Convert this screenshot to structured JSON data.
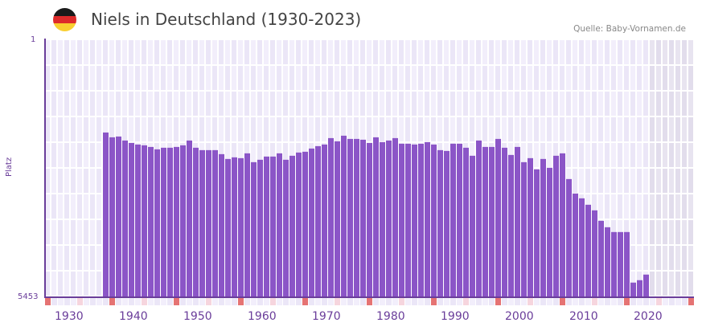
{
  "header": {
    "title": "Niels in Deutschland (1930-2023)",
    "source": "Quelle: Baby-Vornamen.de",
    "flag": [
      "#1a1a1a",
      "#dd2a2a",
      "#f9cf30"
    ]
  },
  "colors": {
    "bar": "#8b55c7",
    "axis": "#6a3d9a",
    "grid_a": "#f2eefb",
    "grid_b": "#ebe6f7",
    "future_a": "#e8e4f0",
    "future_b": "#e2ddec",
    "decade_marker": "#e57373",
    "mid_marker": "#f6d5de"
  },
  "chart_data": {
    "type": "bar",
    "title": "Niels in Deutschland (1930-2023)",
    "xlabel": "",
    "ylabel": "Platz",
    "y_inverted": true,
    "ylim": [
      1,
      5453
    ],
    "y_ticks": [
      "1",
      "5453"
    ],
    "x_ticks": [
      "1930",
      "1940",
      "1950",
      "1960",
      "1970",
      "1980",
      "1990",
      "2000",
      "2010",
      "2020"
    ],
    "x_range": [
      1928,
      2028
    ],
    "grid": true,
    "categories": [
      1937,
      1938,
      1939,
      1940,
      1941,
      1942,
      1943,
      1944,
      1945,
      1946,
      1947,
      1948,
      1949,
      1950,
      1951,
      1952,
      1953,
      1954,
      1955,
      1956,
      1957,
      1958,
      1959,
      1960,
      1961,
      1962,
      1963,
      1964,
      1965,
      1966,
      1967,
      1968,
      1969,
      1970,
      1971,
      1972,
      1973,
      1974,
      1975,
      1976,
      1977,
      1978,
      1979,
      1980,
      1981,
      1982,
      1983,
      1984,
      1985,
      1986,
      1987,
      1988,
      1989,
      1990,
      1991,
      1992,
      1993,
      1994,
      1995,
      1996,
      1997,
      1998,
      1999,
      2000,
      2001,
      2002,
      2003,
      2004,
      2005,
      2006,
      2007,
      2008,
      2009,
      2010,
      2011,
      2012,
      2013,
      2014,
      2015,
      2016,
      2017,
      2018,
      2019,
      2020,
      2021
    ],
    "values": [
      1959,
      2061,
      2044,
      2129,
      2180,
      2214,
      2231,
      2265,
      2316,
      2282,
      2282,
      2265,
      2231,
      2129,
      2282,
      2333,
      2333,
      2333,
      2418,
      2520,
      2486,
      2503,
      2401,
      2588,
      2537,
      2469,
      2469,
      2401,
      2537,
      2452,
      2384,
      2367,
      2299,
      2248,
      2214,
      2078,
      2146,
      2027,
      2095,
      2095,
      2112,
      2180,
      2061,
      2163,
      2129,
      2078,
      2197,
      2197,
      2214,
      2197,
      2163,
      2214,
      2333,
      2350,
      2197,
      2197,
      2282,
      2452,
      2129,
      2265,
      2265,
      2095,
      2282,
      2435,
      2265,
      2588,
      2503,
      2741,
      2520,
      2707,
      2452,
      2401,
      2946,
      3253,
      3355,
      3491,
      3610,
      3832,
      3968,
      4070,
      4070,
      4070,
      5142,
      5091,
      4972
    ]
  },
  "x_axis": {
    "labels": [
      "1930",
      "1940",
      "1950",
      "1960",
      "1970",
      "1980",
      "1990",
      "2000",
      "2010",
      "2020"
    ]
  },
  "y_axis": {
    "top": "1",
    "bottom": "5453",
    "label": "Platz"
  }
}
